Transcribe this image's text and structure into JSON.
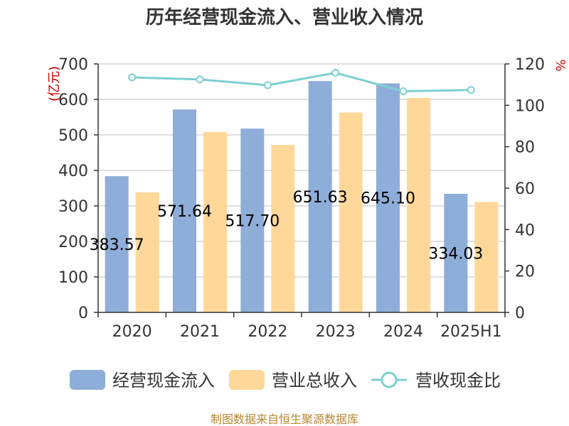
{
  "chart_data": {
    "type": "bar",
    "title": "历年经营现金流入、营业收入情况",
    "categories": [
      "2020",
      "2021",
      "2022",
      "2023",
      "2024",
      "2025H1"
    ],
    "y_left": {
      "unit": "(亿元)",
      "range": [
        0,
        700
      ],
      "ticks": [
        "0",
        "100",
        "200",
        "300",
        "400",
        "500",
        "600",
        "700"
      ]
    },
    "y_right": {
      "unit": "%",
      "range": [
        0,
        120
      ],
      "ticks": [
        "0",
        "20",
        "40",
        "60",
        "80",
        "100",
        "120"
      ]
    },
    "series": [
      {
        "name": "经营现金流入",
        "type": "bar",
        "axis": "left",
        "color": "#8eadd9",
        "values": [
          383.57,
          571.64,
          517.7,
          651.63,
          645.1,
          334.03
        ],
        "labels": [
          "383.57",
          "571.64",
          "517.70",
          "651.63",
          "645.10",
          "334.03"
        ]
      },
      {
        "name": "营业总收入",
        "type": "bar",
        "axis": "left",
        "color": "#ffd899",
        "values": [
          338,
          508,
          472,
          563,
          604,
          311
        ]
      },
      {
        "name": "营收现金比",
        "type": "line",
        "axis": "right",
        "color": "#7ecfd3",
        "values": [
          113.5,
          112.5,
          109.7,
          115.7,
          106.8,
          107.4
        ]
      }
    ],
    "legend": {
      "position": "bottom"
    },
    "grid": true
  },
  "footer": {
    "source": "制图数据来自恒生聚源数据库"
  }
}
